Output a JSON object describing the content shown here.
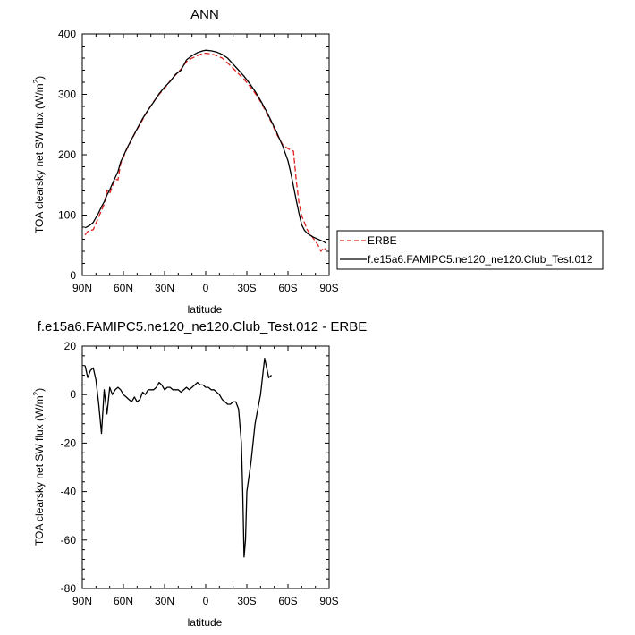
{
  "chart_data": [
    {
      "type": "line",
      "title": "ANN",
      "xlabel": "latitude",
      "ylabel": "TOA clearsky net SW flux (W/m",
      "ylabel_sup": "2",
      "ylabel_close": ")",
      "xlim": [
        90,
        -90
      ],
      "ylim": [
        0,
        400
      ],
      "xticks": [
        {
          "v": 90,
          "label": "90N"
        },
        {
          "v": 60,
          "label": "60N"
        },
        {
          "v": 30,
          "label": "30N"
        },
        {
          "v": 0,
          "label": "0"
        },
        {
          "v": -30,
          "label": "30S"
        },
        {
          "v": -60,
          "label": "60S"
        },
        {
          "v": -90,
          "label": "90S"
        }
      ],
      "yticks": [
        {
          "v": 0,
          "label": "0"
        },
        {
          "v": 100,
          "label": "100"
        },
        {
          "v": 200,
          "label": "200"
        },
        {
          "v": 300,
          "label": "300"
        },
        {
          "v": 400,
          "label": "400"
        }
      ],
      "legend": {
        "placement": "right"
      },
      "series": [
        {
          "name": "ERBE",
          "color": "#e0201e",
          "dash": "dashed",
          "points": [
            [
              88,
              67
            ],
            [
              86,
              73
            ],
            [
              82,
              76
            ],
            [
              78,
              97
            ],
            [
              74,
              118
            ],
            [
              72,
              141
            ],
            [
              70,
              136
            ],
            [
              66,
              160
            ],
            [
              64,
              158
            ],
            [
              62,
              185
            ],
            [
              58,
              207
            ],
            [
              54,
              225
            ],
            [
              50,
              242
            ],
            [
              46,
              258
            ],
            [
              42,
              274
            ],
            [
              38,
              288
            ],
            [
              34,
              300
            ],
            [
              30,
              310
            ],
            [
              26,
              322
            ],
            [
              22,
              332
            ],
            [
              18,
              342
            ],
            [
              14,
              354
            ],
            [
              10,
              360
            ],
            [
              6,
              364
            ],
            [
              2,
              368
            ],
            [
              0,
              368
            ],
            [
              -4,
              367
            ],
            [
              -8,
              364
            ],
            [
              -12,
              360
            ],
            [
              -16,
              352
            ],
            [
              -20,
              343
            ],
            [
              -24,
              334
            ],
            [
              -28,
              325
            ],
            [
              -32,
              314
            ],
            [
              -36,
              302
            ],
            [
              -40,
              288
            ],
            [
              -44,
              271
            ],
            [
              -48,
              253
            ],
            [
              -52,
              233
            ],
            [
              -56,
              217
            ],
            [
              -60,
              210
            ],
            [
              -64,
              206
            ],
            [
              -66,
              158
            ],
            [
              -68,
              120
            ],
            [
              -70,
              99
            ],
            [
              -74,
              76
            ],
            [
              -78,
              63
            ],
            [
              -82,
              50
            ],
            [
              -84,
              40
            ],
            [
              -86,
              46
            ],
            [
              -88,
              42
            ]
          ]
        },
        {
          "name": "f.e15a6.FAMIPC5.ne120_ne120.Club_Test.012",
          "color": "#000000",
          "dash": "solid",
          "points": [
            [
              88,
              79
            ],
            [
              86,
              81
            ],
            [
              84,
              84
            ],
            [
              82,
              88
            ],
            [
              80,
              96
            ],
            [
              78,
              104
            ],
            [
              76,
              114
            ],
            [
              74,
              122
            ],
            [
              72,
              133
            ],
            [
              70,
              142
            ],
            [
              68,
              152
            ],
            [
              66,
              162
            ],
            [
              64,
              172
            ],
            [
              62,
              188
            ],
            [
              58,
              208
            ],
            [
              54,
              226
            ],
            [
              50,
              243
            ],
            [
              46,
              260
            ],
            [
              42,
              274
            ],
            [
              38,
              287
            ],
            [
              34,
              301
            ],
            [
              30,
              312
            ],
            [
              26,
              321
            ],
            [
              22,
              333
            ],
            [
              18,
              340
            ],
            [
              14,
              357
            ],
            [
              10,
              364
            ],
            [
              6,
              369
            ],
            [
              2,
              372
            ],
            [
              0,
              373
            ],
            [
              -4,
              372
            ],
            [
              -8,
              370
            ],
            [
              -12,
              366
            ],
            [
              -16,
              360
            ],
            [
              -20,
              350
            ],
            [
              -24,
              340
            ],
            [
              -28,
              330
            ],
            [
              -32,
              318
            ],
            [
              -36,
              305
            ],
            [
              -40,
              290
            ],
            [
              -44,
              273
            ],
            [
              -48,
              255
            ],
            [
              -52,
              236
            ],
            [
              -56,
              215
            ],
            [
              -60,
              190
            ],
            [
              -62,
              170
            ],
            [
              -64,
              148
            ],
            [
              -66,
              125
            ],
            [
              -68,
              103
            ],
            [
              -70,
              84
            ],
            [
              -72,
              75
            ],
            [
              -74,
              70
            ],
            [
              -78,
              64
            ],
            [
              -82,
              60
            ],
            [
              -86,
              56
            ],
            [
              -88,
              53
            ]
          ]
        }
      ]
    },
    {
      "type": "line",
      "title": "f.e15a6.FAMIPC5.ne120_ne120.Club_Test.012 - ERBE",
      "xlabel": "latitude",
      "ylabel": "TOA clearsky net SW flux (W/m",
      "ylabel_sup": "2",
      "ylabel_close": ")",
      "xlim": [
        90,
        -90
      ],
      "ylim": [
        -80,
        20
      ],
      "xticks": [
        {
          "v": 90,
          "label": "90N"
        },
        {
          "v": 60,
          "label": "60N"
        },
        {
          "v": 30,
          "label": "30N"
        },
        {
          "v": 0,
          "label": "0"
        },
        {
          "v": -30,
          "label": "30S"
        },
        {
          "v": -60,
          "label": "60S"
        },
        {
          "v": -90,
          "label": "90S"
        }
      ],
      "yticks": [
        {
          "v": -80,
          "label": "-80"
        },
        {
          "v": -60,
          "label": "-60"
        },
        {
          "v": -40,
          "label": "-40"
        },
        {
          "v": -20,
          "label": "-20"
        },
        {
          "v": 0,
          "label": "0"
        },
        {
          "v": 20,
          "label": "20"
        }
      ],
      "series": [
        {
          "color": "#000000",
          "dash": "solid",
          "points": [
            [
              88,
              12
            ],
            [
              86,
              7
            ],
            [
              84,
              10
            ],
            [
              82,
              11
            ],
            [
              80,
              6
            ],
            [
              78,
              -4
            ],
            [
              76,
              -16
            ],
            [
              74,
              2
            ],
            [
              72,
              -8
            ],
            [
              70,
              3
            ],
            [
              68,
              0
            ],
            [
              66,
              2
            ],
            [
              64,
              3
            ],
            [
              62,
              2
            ],
            [
              60,
              0
            ],
            [
              58,
              -1
            ],
            [
              56,
              -2
            ],
            [
              54,
              -3
            ],
            [
              52,
              -1
            ],
            [
              50,
              -3
            ],
            [
              48,
              -2
            ],
            [
              46,
              1
            ],
            [
              44,
              0
            ],
            [
              42,
              2
            ],
            [
              40,
              2
            ],
            [
              38,
              2
            ],
            [
              36,
              3
            ],
            [
              34,
              5
            ],
            [
              32,
              4
            ],
            [
              30,
              2
            ],
            [
              28,
              3
            ],
            [
              26,
              3
            ],
            [
              24,
              2
            ],
            [
              22,
              2
            ],
            [
              20,
              2
            ],
            [
              18,
              1
            ],
            [
              16,
              2
            ],
            [
              14,
              3
            ],
            [
              12,
              2
            ],
            [
              10,
              3
            ],
            [
              8,
              4
            ],
            [
              6,
              5
            ],
            [
              4,
              4
            ],
            [
              2,
              4
            ],
            [
              0,
              3
            ],
            [
              -2,
              3
            ],
            [
              -4,
              2
            ],
            [
              -6,
              2
            ],
            [
              -8,
              1
            ],
            [
              -10,
              0
            ],
            [
              -12,
              -2
            ],
            [
              -14,
              -3
            ],
            [
              -16,
              -4
            ],
            [
              -18,
              -4
            ],
            [
              -20,
              -3
            ],
            [
              -22,
              -3
            ],
            [
              -24,
              -6
            ],
            [
              -26,
              -20
            ],
            [
              -27,
              -40
            ],
            [
              -28,
              -67
            ],
            [
              -29,
              -60
            ],
            [
              -30,
              -40
            ],
            [
              -33,
              -28
            ],
            [
              -36,
              -12
            ],
            [
              -40,
              0
            ],
            [
              -43,
              15
            ],
            [
              -46,
              7
            ],
            [
              -48,
              8
            ]
          ]
        }
      ]
    }
  ]
}
